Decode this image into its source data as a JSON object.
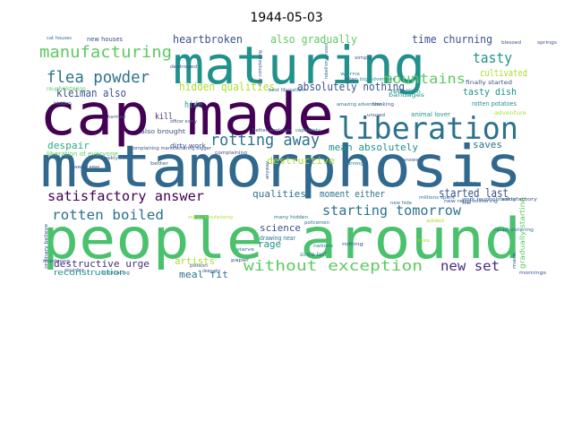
{
  "title": "1944-05-03",
  "colors": {
    "background": "#ffffff",
    "dark_purple": "#440154",
    "purple": "#472d7b",
    "indigo": "#3b528b",
    "blue": "#2c728e",
    "teal": "#21918c",
    "green_teal": "#28ae80",
    "green": "#5ec962",
    "light_green": "#addc30",
    "yellow": "#fde725"
  },
  "words": [
    {
      "text": "maturing",
      "color": "#21918c"
    },
    {
      "text": "cap made",
      "color": "#440154"
    },
    {
      "text": "metamorphosis",
      "color": "#31688e"
    },
    {
      "text": "people around",
      "color": "#4ac16d"
    },
    {
      "text": "liberation",
      "color": "#2c728e"
    },
    {
      "text": "manufacturing",
      "color": "#5ec962"
    },
    {
      "text": "flea powder",
      "color": "#2c728e"
    },
    {
      "text": "kleiman also",
      "color": "#3b528b"
    },
    {
      "text": "heartbroken",
      "color": "#3b528b"
    },
    {
      "text": "also gradually",
      "color": "#5ec962"
    },
    {
      "text": "time churning",
      "color": "#3b528b"
    },
    {
      "text": "tasty",
      "color": "#21918c"
    },
    {
      "text": "mountains",
      "color": "#5ec962"
    },
    {
      "text": "cultivated",
      "color": "#addc30"
    },
    {
      "text": "absolutely nothing",
      "color": "#3b528b"
    },
    {
      "text": "hidden qualities",
      "color": "#addc30"
    },
    {
      "text": "rotting away",
      "color": "#2c728e"
    },
    {
      "text": "tasty dish",
      "color": "#21918c"
    },
    {
      "text": "hide",
      "color": "#21918c"
    },
    {
      "text": "kill",
      "color": "#472d7b"
    },
    {
      "text": "despair",
      "color": "#28ae80"
    },
    {
      "text": "mean absolutely",
      "color": "#21918c"
    },
    {
      "text": "saves",
      "color": "#2c728e"
    },
    {
      "text": "satisfactory answer",
      "color": "#440154"
    },
    {
      "text": "destructive",
      "color": "#addc30"
    },
    {
      "text": "qualities",
      "color": "#2c728e"
    },
    {
      "text": "moment either",
      "color": "#2c728e"
    },
    {
      "text": "started last",
      "color": "#3b528b"
    },
    {
      "text": "starting tomorrow",
      "color": "#2c728e"
    },
    {
      "text": "rotten boiled",
      "color": "#2c728e"
    },
    {
      "text": "science",
      "color": "#3b528b"
    },
    {
      "text": "rage",
      "color": "#21918c"
    },
    {
      "text": "without exception",
      "color": "#5ec962"
    },
    {
      "text": "new set",
      "color": "#472d7b"
    },
    {
      "text": "destructive urge",
      "color": "#472d7b"
    },
    {
      "text": "artists",
      "color": "#addc30"
    },
    {
      "text": "meal fit",
      "color": "#2c728e"
    },
    {
      "text": "reconstruction",
      "color": "#21918c"
    },
    {
      "text": "adventure",
      "color": "#addc30"
    },
    {
      "text": "rotten potatoes",
      "color": "#21918c"
    },
    {
      "text": "animal lover",
      "color": "#21918c"
    },
    {
      "text": "dirty work",
      "color": "#3b528b"
    },
    {
      "text": "also brought",
      "color": "#3b528b"
    },
    {
      "text": "gradually starting",
      "color": "#5ec962"
    },
    {
      "text": "finally started",
      "color": "#3b528b"
    },
    {
      "text": "new houses",
      "color": "#3b528b"
    },
    {
      "text": "rebellion",
      "color": "#21918c"
    },
    {
      "text": "bandages",
      "color": "#21918c"
    },
    {
      "text": "fascinating",
      "color": "#2c728e"
    },
    {
      "text": "liberation of everyone",
      "color": "#5ec962"
    },
    {
      "text": "amazing adventure",
      "color": "#2c728e"
    },
    {
      "text": "big adventure",
      "color": "#21918c"
    },
    {
      "text": "drawing near",
      "color": "#2c728e"
    },
    {
      "text": "many hidden",
      "color": "#2c728e"
    },
    {
      "text": "since last",
      "color": "#2c728e"
    },
    {
      "text": "policemen",
      "color": "#2c728e"
    },
    {
      "text": "rotting",
      "color": "#3b528b"
    },
    {
      "text": "complaining",
      "color": "#3b528b"
    },
    {
      "text": "warns",
      "color": "#21918c"
    },
    {
      "text": "blessed",
      "color": "#3b528b"
    },
    {
      "text": "springs",
      "color": "#3b528b"
    },
    {
      "text": "cat houses",
      "color": "#2c728e"
    },
    {
      "text": "best liberation",
      "color": "#2c728e"
    },
    {
      "text": "reupholstering",
      "color": "#5ec962"
    },
    {
      "text": "destroyed",
      "color": "#3b528b"
    },
    {
      "text": "hidden",
      "color": "#2c728e"
    },
    {
      "text": "weekly news",
      "color": "#3b528b"
    },
    {
      "text": "murder",
      "color": "#3b528b"
    },
    {
      "text": "mornings",
      "color": "#3b528b"
    },
    {
      "text": "starve",
      "color": "#2c728e"
    },
    {
      "text": "nations",
      "color": "#2c728e"
    },
    {
      "text": "better airplanes",
      "color": "#3b528b"
    },
    {
      "text": "capitalists",
      "color": "#2c728e"
    },
    {
      "text": "work reupholstering",
      "color": "#2c728e"
    },
    {
      "text": "satisfactory",
      "color": "#3b528b"
    },
    {
      "text": "officer every",
      "color": "#3b528b"
    },
    {
      "text": "english manufacturing",
      "color": "#addc30"
    },
    {
      "text": "complaining manufacturing bigger",
      "color": "#3b528b"
    },
    {
      "text": "weekly",
      "color": "#3b528b"
    },
    {
      "text": "thinking",
      "color": "#3b528b"
    },
    {
      "text": "poison",
      "color": "#3b528b"
    },
    {
      "text": "deep sky",
      "color": "#3b528b"
    },
    {
      "text": "burning",
      "color": "#2c728e"
    },
    {
      "text": "added",
      "color": "#addc30"
    },
    {
      "text": "new reupholstering",
      "color": "#3b528b"
    },
    {
      "text": "simply",
      "color": "#3b528b"
    },
    {
      "text": "harmed",
      "color": "#3b528b"
    },
    {
      "text": "unused",
      "color": "#3b528b"
    },
    {
      "text": "answer",
      "color": "#3b528b"
    },
    {
      "text": "rebellion unused",
      "color": "#2c728e"
    },
    {
      "text": "day complaining",
      "color": "#3b528b"
    },
    {
      "text": "anyway",
      "color": "#3b528b"
    },
    {
      "text": "ordinary believe",
      "color": "#3b528b"
    },
    {
      "text": "mark",
      "color": "#3b528b"
    },
    {
      "text": "better",
      "color": "#3b528b"
    },
    {
      "text": "drawing",
      "color": "#2c728e"
    },
    {
      "text": "millions spent",
      "color": "#2c728e"
    },
    {
      "text": "new hide",
      "color": "#2c728e"
    },
    {
      "text": "paper",
      "color": "#3b528b"
    },
    {
      "text": "plan",
      "color": "#3b528b"
    },
    {
      "text": "lie",
      "color": "#3b528b"
    },
    {
      "text": "murdering",
      "color": "#3b528b"
    },
    {
      "text": "loss",
      "color": "#addc30"
    },
    {
      "text": "reupholstering",
      "color": "#2c728e"
    }
  ]
}
